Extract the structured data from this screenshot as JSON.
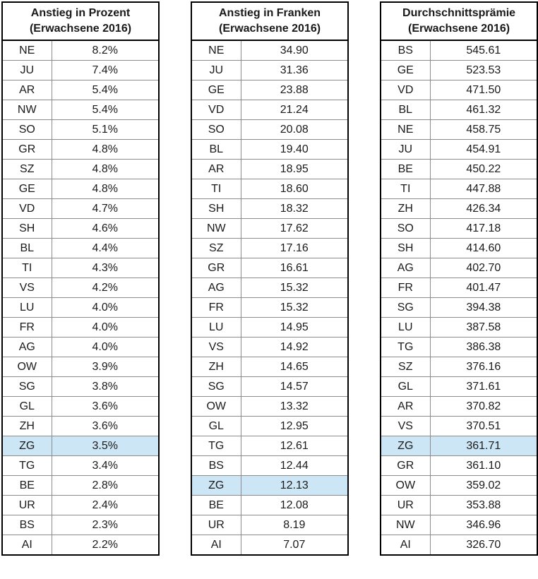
{
  "styles": {
    "highlight_color": "#cde6f5",
    "outer_border_color": "#000000",
    "grid_line_color": "#8c8c8c",
    "text_color": "#1a1a1a",
    "background_color": "#ffffff"
  },
  "chart_data": [
    {
      "type": "table",
      "title": "Anstieg in Prozent",
      "subtitle": "(Erwachsene 2016)",
      "highlighted_row": "ZG",
      "rows": [
        [
          "NE",
          "8.2%"
        ],
        [
          "JU",
          "7.4%"
        ],
        [
          "AR",
          "5.4%"
        ],
        [
          "NW",
          "5.4%"
        ],
        [
          "SO",
          "5.1%"
        ],
        [
          "GR",
          "4.8%"
        ],
        [
          "SZ",
          "4.8%"
        ],
        [
          "GE",
          "4.8%"
        ],
        [
          "VD",
          "4.7%"
        ],
        [
          "SH",
          "4.6%"
        ],
        [
          "BL",
          "4.4%"
        ],
        [
          "TI",
          "4.3%"
        ],
        [
          "VS",
          "4.2%"
        ],
        [
          "LU",
          "4.0%"
        ],
        [
          "FR",
          "4.0%"
        ],
        [
          "AG",
          "4.0%"
        ],
        [
          "OW",
          "3.9%"
        ],
        [
          "SG",
          "3.8%"
        ],
        [
          "GL",
          "3.6%"
        ],
        [
          "ZH",
          "3.6%"
        ],
        [
          "ZG",
          "3.5%"
        ],
        [
          "TG",
          "3.4%"
        ],
        [
          "BE",
          "2.8%"
        ],
        [
          "UR",
          "2.4%"
        ],
        [
          "BS",
          "2.3%"
        ],
        [
          "AI",
          "2.2%"
        ]
      ]
    },
    {
      "type": "table",
      "title": "Anstieg in Franken",
      "subtitle": "(Erwachsene 2016)",
      "highlighted_row": "ZG",
      "rows": [
        [
          "NE",
          "34.90"
        ],
        [
          "JU",
          "31.36"
        ],
        [
          "GE",
          "23.88"
        ],
        [
          "VD",
          "21.24"
        ],
        [
          "SO",
          "20.08"
        ],
        [
          "BL",
          "19.40"
        ],
        [
          "AR",
          "18.95"
        ],
        [
          "TI",
          "18.60"
        ],
        [
          "SH",
          "18.32"
        ],
        [
          "NW",
          "17.62"
        ],
        [
          "SZ",
          "17.16"
        ],
        [
          "GR",
          "16.61"
        ],
        [
          "AG",
          "15.32"
        ],
        [
          "FR",
          "15.32"
        ],
        [
          "LU",
          "14.95"
        ],
        [
          "VS",
          "14.92"
        ],
        [
          "ZH",
          "14.65"
        ],
        [
          "SG",
          "14.57"
        ],
        [
          "OW",
          "13.32"
        ],
        [
          "GL",
          "12.95"
        ],
        [
          "TG",
          "12.61"
        ],
        [
          "BS",
          "12.44"
        ],
        [
          "ZG",
          "12.13"
        ],
        [
          "BE",
          "12.08"
        ],
        [
          "UR",
          "8.19"
        ],
        [
          "AI",
          "7.07"
        ]
      ]
    },
    {
      "type": "table",
      "title": "Durchschnittsprämie",
      "subtitle": "(Erwachsene 2016)",
      "highlighted_row": "ZG",
      "rows": [
        [
          "BS",
          "545.61"
        ],
        [
          "GE",
          "523.53"
        ],
        [
          "VD",
          "471.50"
        ],
        [
          "BL",
          "461.32"
        ],
        [
          "NE",
          "458.75"
        ],
        [
          "JU",
          "454.91"
        ],
        [
          "BE",
          "450.22"
        ],
        [
          "TI",
          "447.88"
        ],
        [
          "ZH",
          "426.34"
        ],
        [
          "SO",
          "417.18"
        ],
        [
          "SH",
          "414.60"
        ],
        [
          "AG",
          "402.70"
        ],
        [
          "FR",
          "401.47"
        ],
        [
          "SG",
          "394.38"
        ],
        [
          "LU",
          "387.58"
        ],
        [
          "TG",
          "386.38"
        ],
        [
          "SZ",
          "376.16"
        ],
        [
          "GL",
          "371.61"
        ],
        [
          "AR",
          "370.82"
        ],
        [
          "VS",
          "370.51"
        ],
        [
          "ZG",
          "361.71"
        ],
        [
          "GR",
          "361.10"
        ],
        [
          "OW",
          "359.02"
        ],
        [
          "UR",
          "353.88"
        ],
        [
          "NW",
          "346.96"
        ],
        [
          "AI",
          "326.70"
        ]
      ]
    }
  ]
}
